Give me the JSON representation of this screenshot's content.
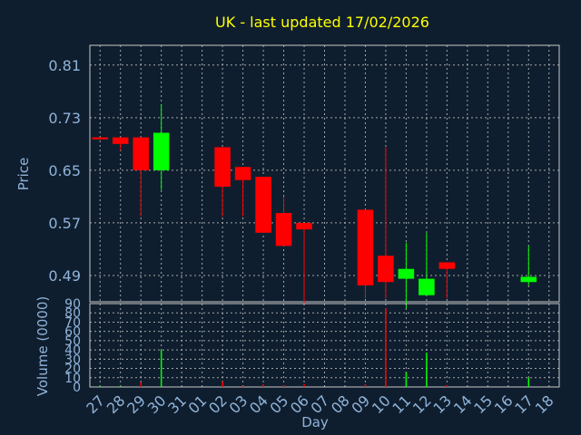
{
  "chart_data": [
    {
      "type": "candlestick",
      "title": "UK - last updated 17/02/2026",
      "xlabel": "Day",
      "ylabel": "Price",
      "ylim": [
        0.45,
        0.84
      ],
      "yticks": [
        "0.81",
        "0.73",
        "0.65",
        "0.57",
        "0.49"
      ],
      "ytick_values": [
        0.81,
        0.73,
        0.65,
        0.57,
        0.49
      ],
      "grid": true,
      "up_color": "#00ff00",
      "down_color": "#ff0000",
      "categories": [
        "27",
        "28",
        "29",
        "30",
        "31",
        "01",
        "02",
        "03",
        "04",
        "05",
        "06",
        "07",
        "08",
        "09",
        "10",
        "11",
        "12",
        "13",
        "14",
        "15",
        "16",
        "17",
        "18"
      ],
      "candles": [
        {
          "x": "27",
          "open": 0.7,
          "high": 0.7,
          "low": 0.697,
          "close": 0.697
        },
        {
          "x": "28",
          "open": 0.7,
          "high": 0.7,
          "low": 0.68,
          "close": 0.69
        },
        {
          "x": "29",
          "open": 0.7,
          "high": 0.7,
          "low": 0.58,
          "close": 0.65
        },
        {
          "x": "30",
          "open": 0.65,
          "high": 0.75,
          "low": 0.62,
          "close": 0.707
        },
        {
          "x": "02",
          "open": 0.685,
          "high": 0.685,
          "low": 0.58,
          "close": 0.625
        },
        {
          "x": "03",
          "open": 0.655,
          "high": 0.655,
          "low": 0.58,
          "close": 0.635
        },
        {
          "x": "04",
          "open": 0.64,
          "high": 0.64,
          "low": 0.555,
          "close": 0.555
        },
        {
          "x": "05",
          "open": 0.585,
          "high": 0.61,
          "low": 0.535,
          "close": 0.535
        },
        {
          "x": "06",
          "open": 0.57,
          "high": 0.57,
          "low": 0.445,
          "close": 0.56
        },
        {
          "x": "09",
          "open": 0.59,
          "high": 0.59,
          "low": 0.455,
          "close": 0.475
        },
        {
          "x": "10",
          "open": 0.52,
          "high": 0.685,
          "low": 0.455,
          "close": 0.48
        },
        {
          "x": "11",
          "open": 0.485,
          "high": 0.54,
          "low": 0.44,
          "close": 0.5
        },
        {
          "x": "12",
          "open": 0.46,
          "high": 0.555,
          "low": 0.46,
          "close": 0.485
        },
        {
          "x": "13",
          "open": 0.51,
          "high": 0.51,
          "low": 0.455,
          "close": 0.5
        },
        {
          "x": "17",
          "open": 0.48,
          "high": 0.535,
          "low": 0.475,
          "close": 0.488
        }
      ]
    },
    {
      "type": "bar",
      "xlabel": "Day",
      "ylabel": "Volume (0000)",
      "ylim": [
        0,
        90
      ],
      "yticks": [
        "90",
        "80",
        "70",
        "60",
        "50",
        "40",
        "30",
        "20",
        "10",
        "0"
      ],
      "ytick_values": [
        90,
        80,
        70,
        60,
        50,
        40,
        30,
        20,
        10,
        0
      ],
      "categories": [
        "27",
        "28",
        "29",
        "30",
        "31",
        "01",
        "02",
        "03",
        "04",
        "05",
        "06",
        "07",
        "08",
        "09",
        "10",
        "11",
        "12",
        "13",
        "14",
        "15",
        "16",
        "17",
        "18"
      ],
      "bars": [
        {
          "x": "27",
          "value": 1,
          "color": "#00ff00"
        },
        {
          "x": "28",
          "value": 1,
          "color": "#00ff00"
        },
        {
          "x": "29",
          "value": 5,
          "color": "#ff0000"
        },
        {
          "x": "30",
          "value": 40,
          "color": "#00ff00"
        },
        {
          "x": "02",
          "value": 6,
          "color": "#ff0000"
        },
        {
          "x": "03",
          "value": 1,
          "color": "#ff0000"
        },
        {
          "x": "04",
          "value": 3,
          "color": "#ff0000"
        },
        {
          "x": "05",
          "value": 2,
          "color": "#ff0000"
        },
        {
          "x": "06",
          "value": 3,
          "color": "#ff0000"
        },
        {
          "x": "09",
          "value": 3,
          "color": "#ff0000"
        },
        {
          "x": "10",
          "value": 85,
          "color": "#ff0000"
        },
        {
          "x": "11",
          "value": 16,
          "color": "#00ff00"
        },
        {
          "x": "12",
          "value": 37,
          "color": "#00ff00"
        },
        {
          "x": "13",
          "value": 2,
          "color": "#ff0000"
        },
        {
          "x": "17",
          "value": 10,
          "color": "#00ff00"
        }
      ]
    }
  ]
}
